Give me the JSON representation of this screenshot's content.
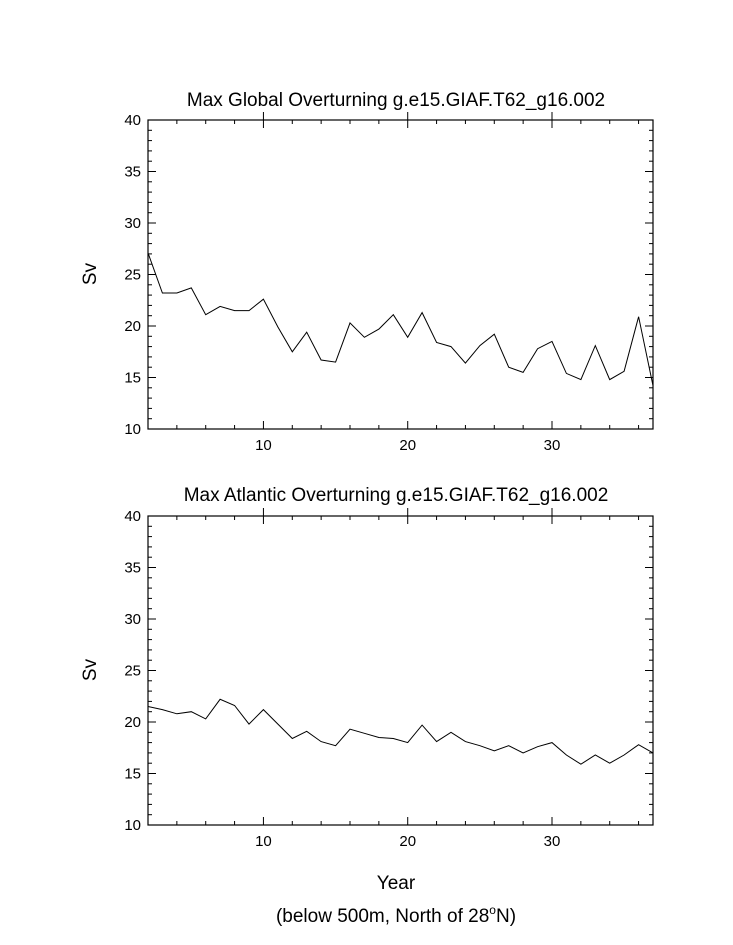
{
  "chart_data": [
    {
      "type": "line",
      "title": "Max Global Overturning g.e15.GIAF.T62_g16.002",
      "xlabel": "",
      "ylabel": "Sv",
      "xlim": [
        2,
        37
      ],
      "ylim": [
        10,
        40
      ],
      "xticks": [
        10,
        20,
        30
      ],
      "yticks": [
        10,
        15,
        20,
        25,
        30,
        35,
        40
      ],
      "grid": false,
      "series": [
        {
          "x": [
            2,
            3,
            4,
            5,
            6,
            7,
            8,
            9,
            10,
            11,
            12,
            13,
            14,
            15,
            16,
            17,
            18,
            19,
            20,
            21,
            22,
            23,
            24,
            25,
            26,
            27,
            28,
            29,
            30,
            31,
            32,
            33,
            34,
            35,
            36,
            37
          ],
          "values": [
            27.1,
            23.2,
            23.2,
            23.7,
            21.1,
            21.9,
            21.5,
            21.5,
            22.6,
            19.9,
            17.5,
            19.4,
            16.7,
            16.5,
            20.3,
            18.9,
            19.7,
            21.1,
            18.9,
            21.3,
            18.4,
            18.0,
            16.4,
            18.1,
            19.2,
            16.0,
            15.5,
            17.8,
            18.5,
            15.4,
            14.8,
            18.1,
            14.8,
            15.6,
            20.9,
            14.2
          ]
        }
      ]
    },
    {
      "type": "line",
      "title": "Max Atlantic Overturning g.e15.GIAF.T62_g16.002",
      "xlabel": "Year",
      "ylabel": "Sv",
      "xlim": [
        2,
        37
      ],
      "ylim": [
        10,
        40
      ],
      "xticks": [
        10,
        20,
        30
      ],
      "yticks": [
        10,
        15,
        20,
        25,
        30,
        35,
        40
      ],
      "grid": false,
      "series": [
        {
          "x": [
            2,
            3,
            4,
            5,
            6,
            7,
            8,
            9,
            10,
            11,
            12,
            13,
            14,
            15,
            16,
            17,
            18,
            19,
            20,
            21,
            22,
            23,
            24,
            25,
            26,
            27,
            28,
            29,
            30,
            31,
            32,
            33,
            34,
            35,
            36,
            37
          ],
          "values": [
            21.5,
            21.2,
            20.8,
            21.0,
            20.3,
            22.2,
            21.6,
            19.8,
            21.2,
            19.8,
            18.4,
            19.1,
            18.1,
            17.7,
            19.3,
            18.9,
            18.5,
            18.4,
            18.0,
            19.7,
            18.1,
            19.0,
            18.1,
            17.7,
            17.2,
            17.7,
            17.0,
            17.6,
            18.0,
            16.8,
            15.9,
            16.8,
            16.0,
            16.8,
            17.8,
            17.0
          ]
        }
      ]
    }
  ],
  "footnote": {
    "prefix": "(below 500m, North of 28",
    "sup": "o",
    "suffix": "N)"
  }
}
